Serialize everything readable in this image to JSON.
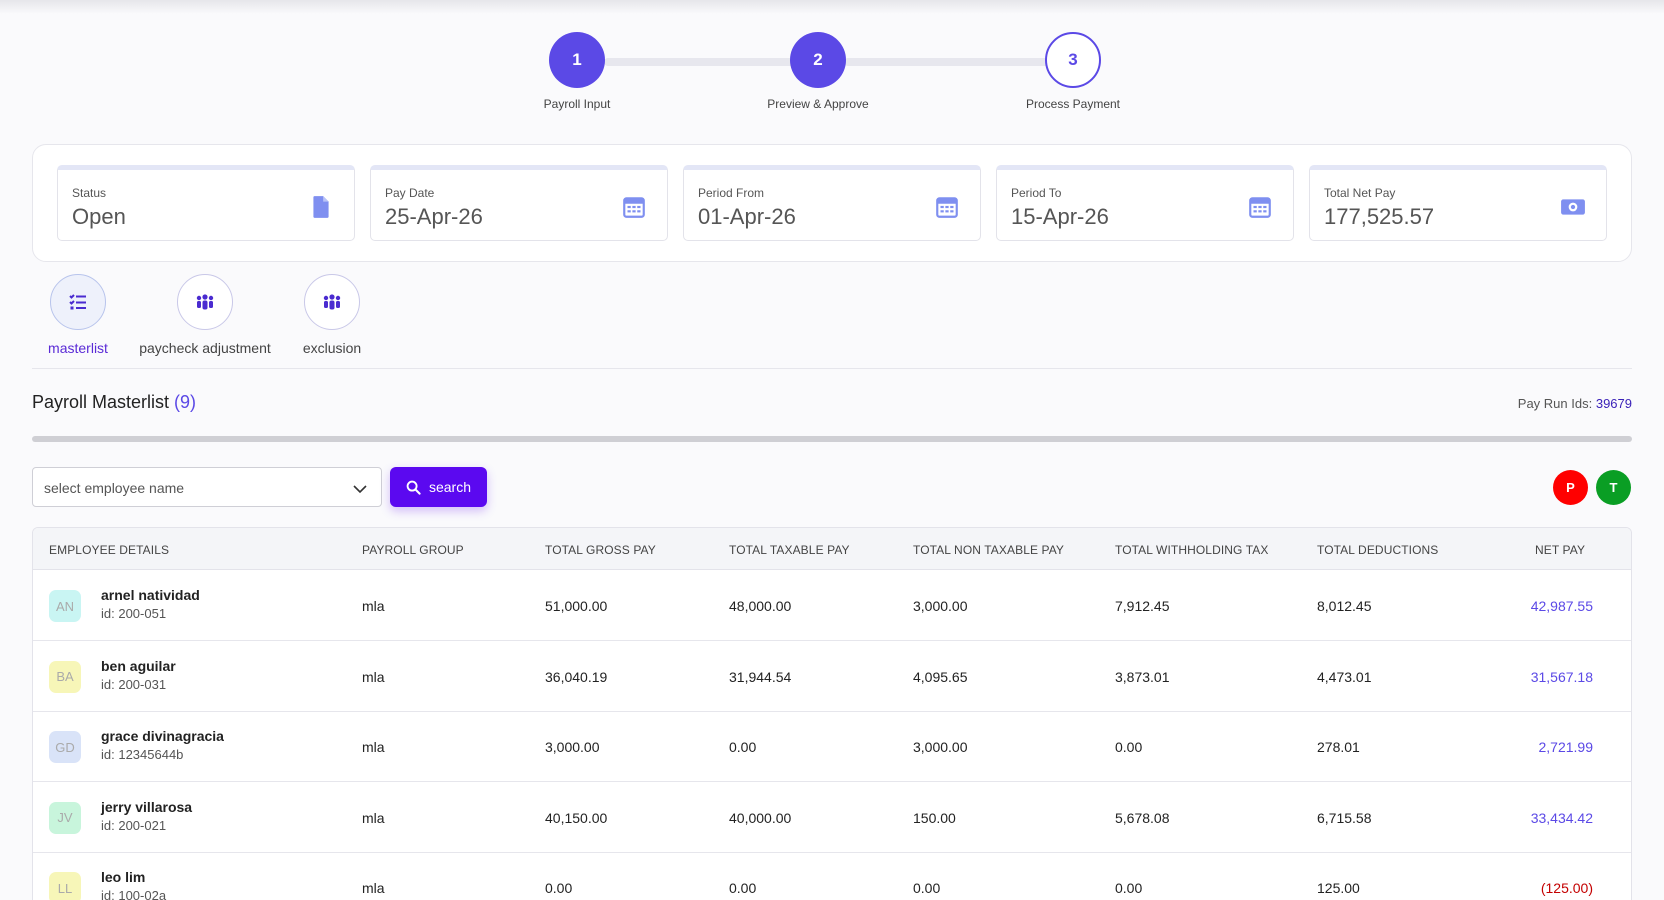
{
  "stepper": {
    "steps": [
      {
        "number": "1",
        "label": "Payroll Input",
        "state": "done"
      },
      {
        "number": "2",
        "label": "Preview & Approve",
        "state": "done"
      },
      {
        "number": "3",
        "label": "Process Payment",
        "state": "todo"
      }
    ]
  },
  "info": {
    "status": {
      "label": "Status",
      "value": "Open",
      "icon": "document-icon"
    },
    "pay_date": {
      "label": "Pay Date",
      "value": "25-Apr-26",
      "icon": "calendar-icon"
    },
    "period_from": {
      "label": "Period From",
      "value": "01-Apr-26",
      "icon": "calendar-icon"
    },
    "period_to": {
      "label": "Period To",
      "value": "15-Apr-26",
      "icon": "calendar-icon"
    },
    "total_net_pay": {
      "label": "Total Net Pay",
      "value": "177,525.57",
      "icon": "money-icon"
    }
  },
  "tabs": [
    {
      "label": "masterlist",
      "icon": "list-check-icon",
      "active": true
    },
    {
      "label": "paycheck adjustment",
      "icon": "users-icon",
      "active": false
    },
    {
      "label": "exclusion",
      "icon": "users-icon",
      "active": false
    }
  ],
  "section": {
    "title": "Payroll Masterlist",
    "count": "(9)",
    "pay_run_label": "Pay Run Ids:",
    "pay_run_id": "39679"
  },
  "filter": {
    "placeholder": "select employee name",
    "search_label": "search"
  },
  "badges": [
    {
      "letter": "P",
      "color": "#ff0000"
    },
    {
      "letter": "T",
      "color": "#0a9e24"
    }
  ],
  "colors": {
    "accent": "#5b49e6",
    "button": "#5b09f0",
    "negative": "#c40000"
  },
  "table": {
    "headers": [
      "EMPLOYEE DETAILS",
      "PAYROLL GROUP",
      "TOTAL GROSS PAY",
      "TOTAL TAXABLE PAY",
      "TOTAL NON TAXABLE PAY",
      "TOTAL WITHHOLDING TAX",
      "TOTAL DEDUCTIONS",
      "NET PAY"
    ],
    "rows": [
      {
        "initials": "AN",
        "avatar_color": "#c9f5f3",
        "name": "arnel natividad",
        "id": "id: 200-051",
        "group": "mla",
        "gross": "51,000.00",
        "taxable": "48,000.00",
        "non_taxable": "3,000.00",
        "withholding": "7,912.45",
        "deductions": "8,012.45",
        "net": "42,987.55",
        "negative": false
      },
      {
        "initials": "BA",
        "avatar_color": "#f7f6b8",
        "name": "ben aguilar",
        "id": "id: 200-031",
        "group": "mla",
        "gross": "36,040.19",
        "taxable": "31,944.54",
        "non_taxable": "4,095.65",
        "withholding": "3,873.01",
        "deductions": "4,473.01",
        "net": "31,567.18",
        "negative": false
      },
      {
        "initials": "GD",
        "avatar_color": "#d9e3f8",
        "name": "grace divinagracia",
        "id": "id: 12345644b",
        "group": "mla",
        "gross": "3,000.00",
        "taxable": "0.00",
        "non_taxable": "3,000.00",
        "withholding": "0.00",
        "deductions": "278.01",
        "net": "2,721.99",
        "negative": false
      },
      {
        "initials": "JV",
        "avatar_color": "#c8f5dc",
        "name": "jerry villarosa",
        "id": "id: 200-021",
        "group": "mla",
        "gross": "40,150.00",
        "taxable": "40,000.00",
        "non_taxable": "150.00",
        "withholding": "5,678.08",
        "deductions": "6,715.58",
        "net": "33,434.42",
        "negative": false
      },
      {
        "initials": "LL",
        "avatar_color": "#f7f6b8",
        "name": "leo lim",
        "id": "id: 100-02a",
        "group": "mla",
        "gross": "0.00",
        "taxable": "0.00",
        "non_taxable": "0.00",
        "withholding": "0.00",
        "deductions": "125.00",
        "net": "(125.00)",
        "negative": true
      }
    ]
  }
}
